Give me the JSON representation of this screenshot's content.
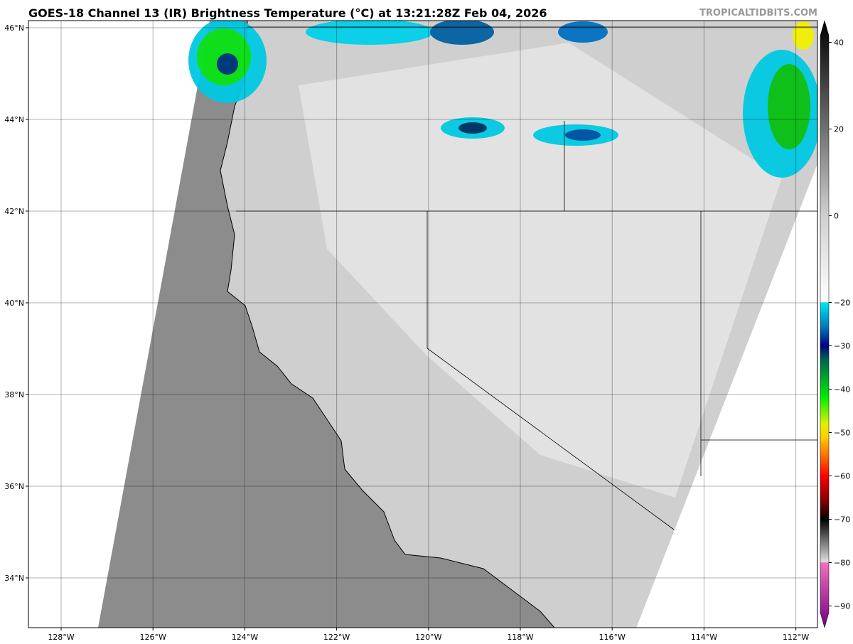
{
  "title": "GOES-18 Channel 13 (IR) Brightness Temperature (°C) at 13:21:28Z Feb 04, 2026",
  "brand": "TROPICALTIDBITS.COM",
  "map": {
    "lon_labels": [
      "128°W",
      "126°W",
      "124°W",
      "122°W",
      "120°W",
      "118°W",
      "116°W",
      "114°W",
      "112°W"
    ],
    "lat_labels": [
      "46°N",
      "44°N",
      "42°N",
      "40°N",
      "38°N",
      "36°N",
      "34°N"
    ]
  },
  "colorbar": {
    "range": [
      -95,
      45
    ],
    "tick_labels": [
      "40",
      "20",
      "0",
      "−20",
      "−30",
      "−40",
      "−50",
      "−60",
      "−70",
      "−80",
      "−90"
    ],
    "tick_values": [
      40,
      20,
      0,
      -20,
      -30,
      -40,
      -50,
      -60,
      -70,
      -80,
      -90
    ],
    "stops": [
      {
        "v": 45,
        "c": "#000000"
      },
      {
        "v": 20,
        "c": "#707070"
      },
      {
        "v": 0,
        "c": "#d0d0d0"
      },
      {
        "v": -19.9,
        "c": "#ffffff"
      },
      {
        "v": -20,
        "c": "#00e8f0"
      },
      {
        "v": -26,
        "c": "#0070b8"
      },
      {
        "v": -30,
        "c": "#000080"
      },
      {
        "v": -33,
        "c": "#006050"
      },
      {
        "v": -37,
        "c": "#00a030"
      },
      {
        "v": -42,
        "c": "#00f000"
      },
      {
        "v": -48,
        "c": "#e0f000"
      },
      {
        "v": -51,
        "c": "#ffd000"
      },
      {
        "v": -56,
        "c": "#ff6000"
      },
      {
        "v": -60,
        "c": "#ff0000"
      },
      {
        "v": -66,
        "c": "#800000"
      },
      {
        "v": -70,
        "c": "#000000"
      },
      {
        "v": -79.9,
        "c": "#e0e0e0"
      },
      {
        "v": -80,
        "c": "#f070c0"
      },
      {
        "v": -95,
        "c": "#700080"
      }
    ]
  }
}
